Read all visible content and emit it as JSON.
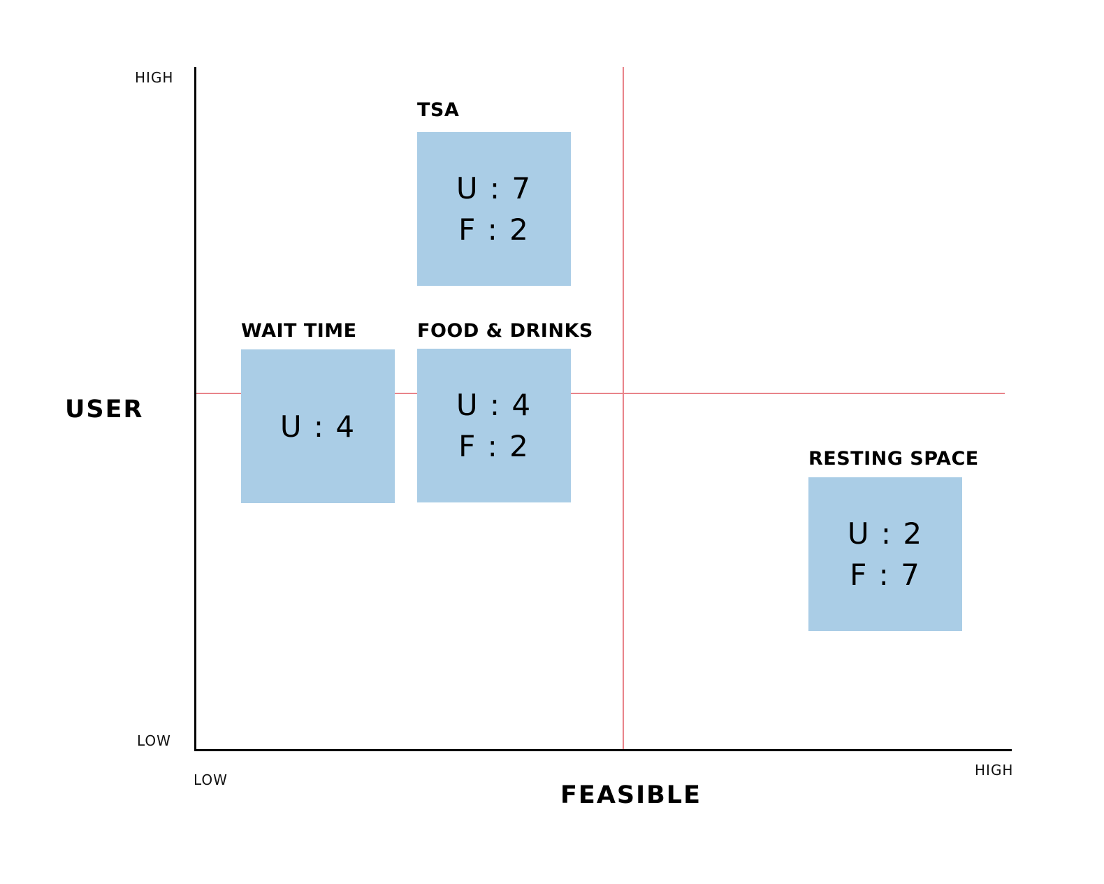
{
  "axes": {
    "y": {
      "title": "USER",
      "high_label": "HIGH",
      "low_label": "LOW"
    },
    "x": {
      "title": "FEASIBLE",
      "low_label": "LOW",
      "high_label": "HIGH"
    }
  },
  "colors": {
    "card_fill": "#aacde6",
    "divider_line": "#e9848a",
    "axis_line": "#000000"
  },
  "items": [
    {
      "label": "TSA",
      "user_score": "U : 7",
      "feasible_score": "F : 2"
    },
    {
      "label": "WAIT TIME",
      "user_score": "U : 4",
      "feasible_score": ""
    },
    {
      "label": "FOOD & DRINKS",
      "user_score": "U : 4",
      "feasible_score": "F : 2"
    },
    {
      "label": "RESTING SPACE",
      "user_score": "U : 2",
      "feasible_score": "F : 7"
    }
  ]
}
